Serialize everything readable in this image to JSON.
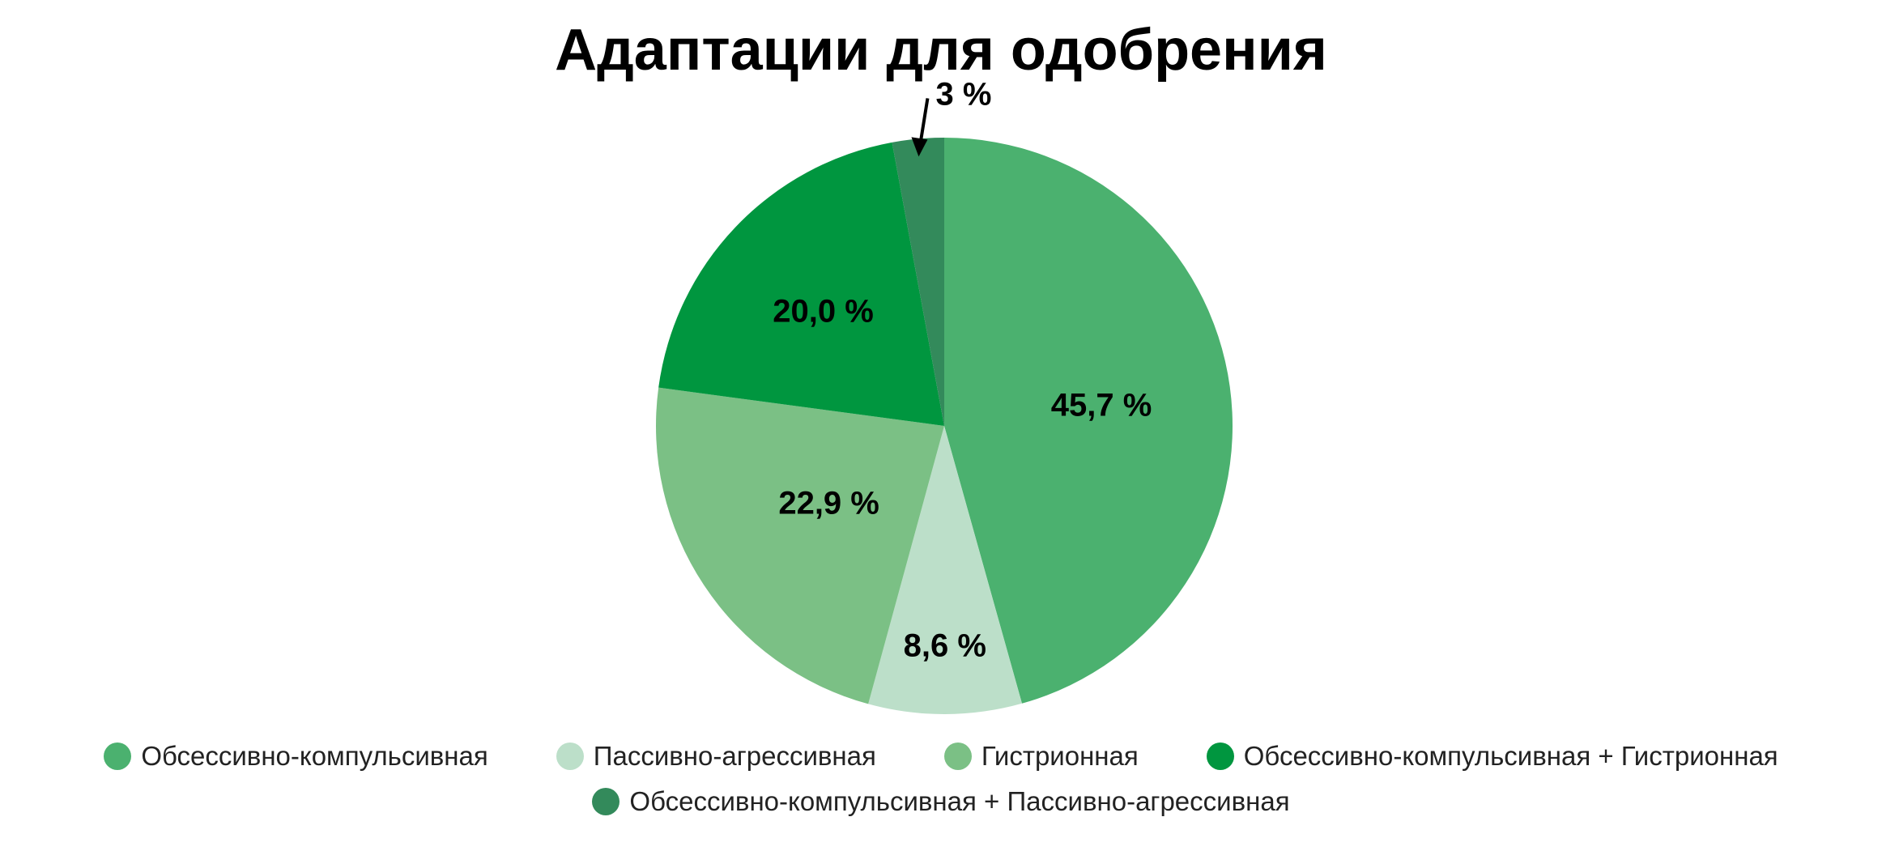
{
  "chart_data": {
    "type": "pie",
    "title": "Адаптации для одобрения",
    "unit": "%",
    "slices": [
      {
        "name": "Обсессивно-компульсивная",
        "value": 45.7,
        "label": "45,7 %",
        "color": "#4bb16f"
      },
      {
        "name": "Пассивно-агрессивная",
        "value": 8.6,
        "label": "8,6 %",
        "color": "#bcdfc9"
      },
      {
        "name": "Гистрионная",
        "value": 22.9,
        "label": "22,9 %",
        "color": "#7bc085"
      },
      {
        "name": "Обсессивно-компульсивная + Гистрионная",
        "value": 20.0,
        "label": "20,0 %",
        "color": "#00963f"
      },
      {
        "name": "Обсессивно-компульсивная + Пассивно-агрессивная",
        "value": 2.9,
        "label": "3 %",
        "color": "#338a5b",
        "label_style": "callout-arrow"
      }
    ],
    "start_angle_deg": 0,
    "direction": "clockwise",
    "legend": {
      "position": "bottom",
      "rows": 2
    }
  }
}
